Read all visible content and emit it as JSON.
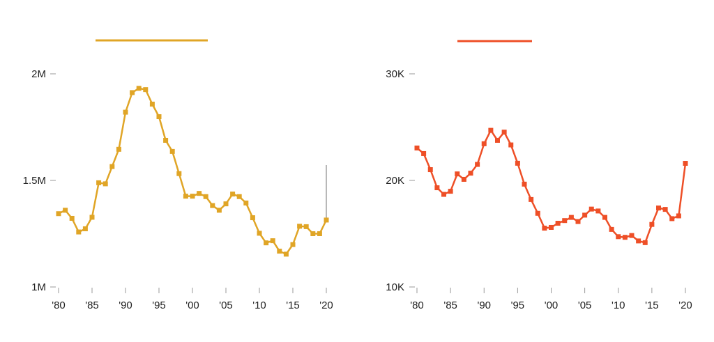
{
  "chart_data": [
    {
      "type": "line",
      "title": "",
      "xlabel": "",
      "ylabel": "",
      "color": "#e0a526",
      "x": [
        1980,
        1981,
        1982,
        1983,
        1984,
        1985,
        1986,
        1987,
        1988,
        1989,
        1990,
        1991,
        1992,
        1993,
        1994,
        1995,
        1996,
        1997,
        1998,
        1999,
        2000,
        2001,
        2002,
        2003,
        2004,
        2005,
        2006,
        2007,
        2008,
        2009,
        2010,
        2011,
        2012,
        2013,
        2014,
        2015,
        2016,
        2017,
        2018,
        2019,
        2020
      ],
      "series": [
        {
          "values": [
            1344000,
            1360000,
            1322000,
            1258000,
            1273000,
            1327000,
            1489000,
            1484000,
            1565000,
            1646000,
            1820000,
            1912000,
            1932000,
            1926000,
            1858000,
            1799000,
            1688000,
            1636000,
            1532000,
            1426000,
            1426000,
            1439000,
            1424000,
            1382000,
            1360000,
            1390000,
            1436000,
            1424000,
            1394000,
            1325000,
            1252000,
            1207000,
            1217000,
            1168000,
            1154000,
            1199000,
            1285000,
            1283000,
            1250000,
            1250000,
            1314000
          ]
        }
      ],
      "ylim": [
        1000000,
        2000000
      ],
      "xlim": [
        1980,
        2020
      ],
      "ytick_values": [
        1000000,
        1500000,
        2000000
      ],
      "yticks": [
        "1M",
        "1.5M",
        "2M"
      ],
      "xtick_values": [
        1980,
        1985,
        1990,
        1995,
        2000,
        2005,
        2010,
        2015,
        2020
      ],
      "xticks": [
        "'80",
        "'85",
        "'90",
        "'95",
        "'00",
        "'05",
        "'10",
        "'15",
        "'20"
      ],
      "marker": "square",
      "grid": false,
      "annotation": "vertical line at 2020 rising above the final point"
    },
    {
      "type": "line",
      "title": "",
      "xlabel": "",
      "ylabel": "",
      "color": "#ee4f27",
      "x": [
        1980,
        1981,
        1982,
        1983,
        1984,
        1985,
        1986,
        1987,
        1988,
        1989,
        1990,
        1991,
        1992,
        1993,
        1994,
        1995,
        1996,
        1997,
        1998,
        1999,
        2000,
        2001,
        2002,
        2003,
        2004,
        2005,
        2006,
        2007,
        2008,
        2009,
        2010,
        2011,
        2012,
        2013,
        2014,
        2015,
        2016,
        2017,
        2018,
        2019,
        2020
      ],
      "series": [
        {
          "values": [
            23040,
            22520,
            21010,
            19310,
            18690,
            18980,
            20610,
            20100,
            20680,
            21500,
            23440,
            24700,
            23760,
            24530,
            23330,
            21610,
            19650,
            18210,
            16910,
            15520,
            15590,
            15980,
            16230,
            16530,
            16140,
            16740,
            17310,
            17130,
            16530,
            15400,
            14720,
            14660,
            14830,
            14320,
            14160,
            15870,
            17410,
            17280,
            16410,
            16670,
            21600
          ]
        }
      ],
      "ylim": [
        10000,
        30000
      ],
      "xlim": [
        1980,
        2020
      ],
      "ytick_values": [
        10000,
        20000,
        30000
      ],
      "yticks": [
        "10K",
        "20K",
        "30K"
      ],
      "xtick_values": [
        1980,
        1985,
        1990,
        1995,
        2000,
        2005,
        2010,
        2015,
        2020
      ],
      "xticks": [
        "'80",
        "'85",
        "'90",
        "'95",
        "'00",
        "'05",
        "'10",
        "'15",
        "'20"
      ],
      "marker": "square",
      "grid": false
    }
  ]
}
